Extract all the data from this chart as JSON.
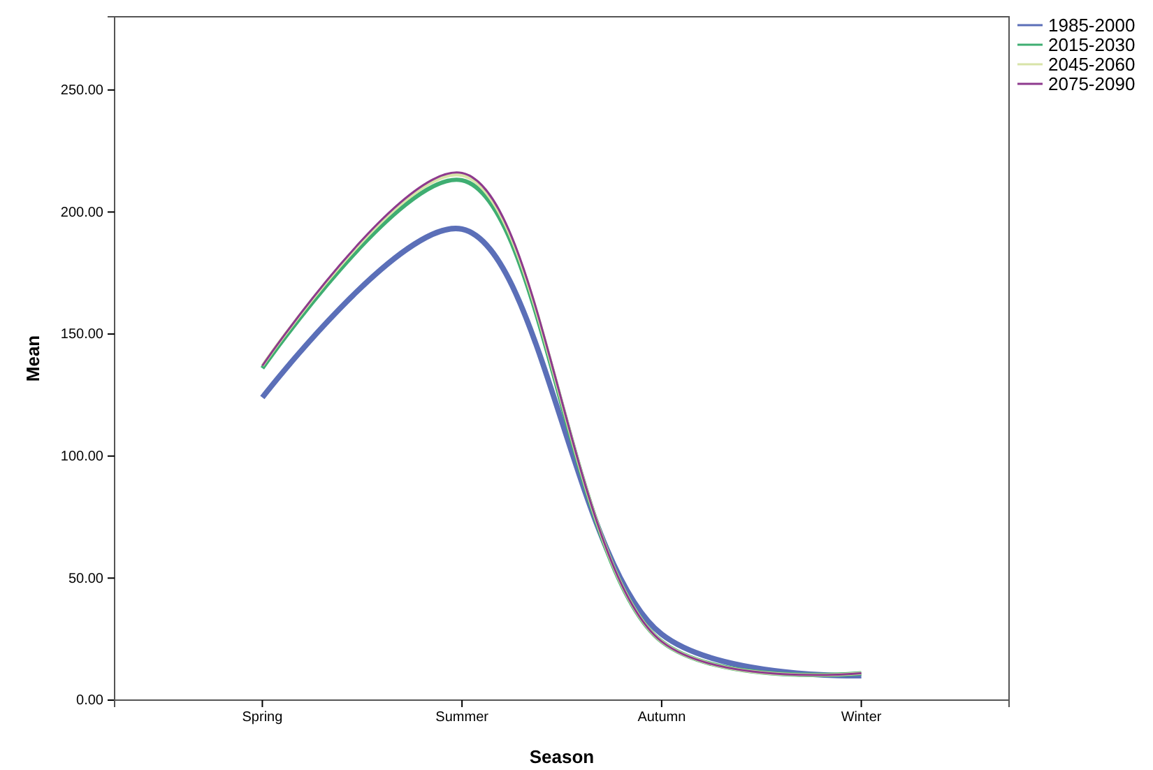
{
  "chart_data": {
    "type": "line",
    "xlabel": "Season",
    "ylabel": "Mean",
    "categories": [
      "Spring",
      "Summer",
      "Autumn",
      "Winter"
    ],
    "series": [
      {
        "name": "1985-2000",
        "color": "#5b6fb8",
        "values": [
          124,
          193,
          27,
          10
        ]
      },
      {
        "name": "2015-2030",
        "color": "#3fae72",
        "values": [
          136,
          213,
          24,
          11
        ]
      },
      {
        "name": "2045-2060",
        "color": "#d8e4a8",
        "values": [
          137,
          215,
          24,
          11
        ]
      },
      {
        "name": "2075-2090",
        "color": "#8e3a8e",
        "values": [
          137,
          216,
          24,
          11
        ]
      }
    ],
    "ylim": [
      0,
      280
    ],
    "yticks": [
      {
        "value": 0,
        "label": "0.00"
      },
      {
        "value": 50,
        "label": "50.00"
      },
      {
        "value": 100,
        "label": "100.00"
      },
      {
        "value": 150,
        "label": "150.00"
      },
      {
        "value": 200,
        "label": "200.00"
      },
      {
        "value": 250,
        "label": "250.00"
      }
    ],
    "legend": "top right",
    "grid": false,
    "marker": "none",
    "line_style": "solid"
  }
}
